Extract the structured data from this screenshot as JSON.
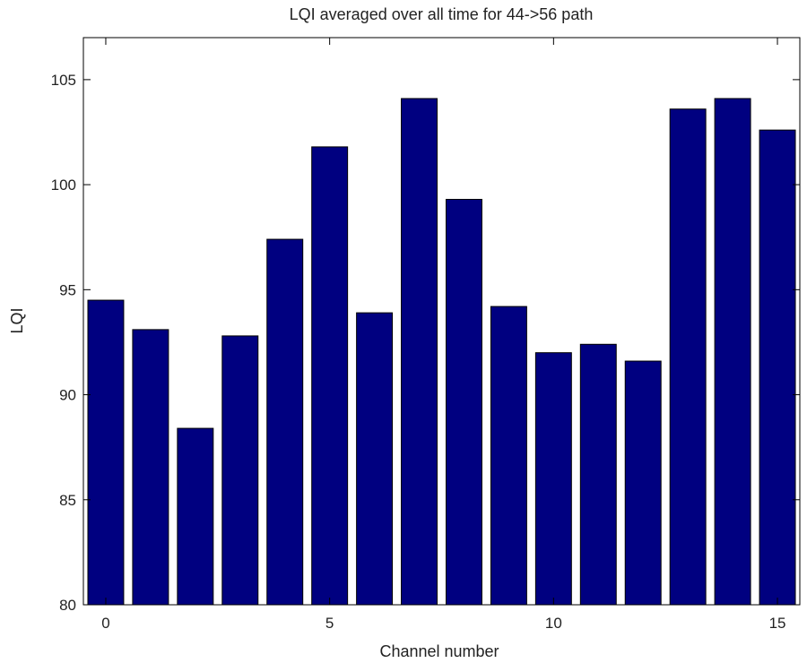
{
  "chart_data": {
    "type": "bar",
    "title": "LQI averaged over all time for 44->56 path",
    "xlabel": "Channel number",
    "ylabel": "LQI",
    "categories": [
      0,
      1,
      2,
      3,
      4,
      5,
      6,
      7,
      8,
      9,
      10,
      11,
      12,
      13,
      14,
      15
    ],
    "values": [
      94.5,
      93.1,
      88.4,
      92.8,
      97.4,
      101.8,
      93.9,
      104.1,
      99.3,
      94.2,
      92.0,
      92.4,
      91.6,
      103.6,
      104.1,
      102.6
    ],
    "xlim": [
      -0.5,
      15.5
    ],
    "ylim": [
      80,
      107
    ],
    "xticks": [
      0,
      5,
      10,
      15
    ],
    "yticks": [
      80,
      85,
      90,
      95,
      100,
      105
    ],
    "bar_color": "#000080",
    "grid": false,
    "legend": "none"
  }
}
